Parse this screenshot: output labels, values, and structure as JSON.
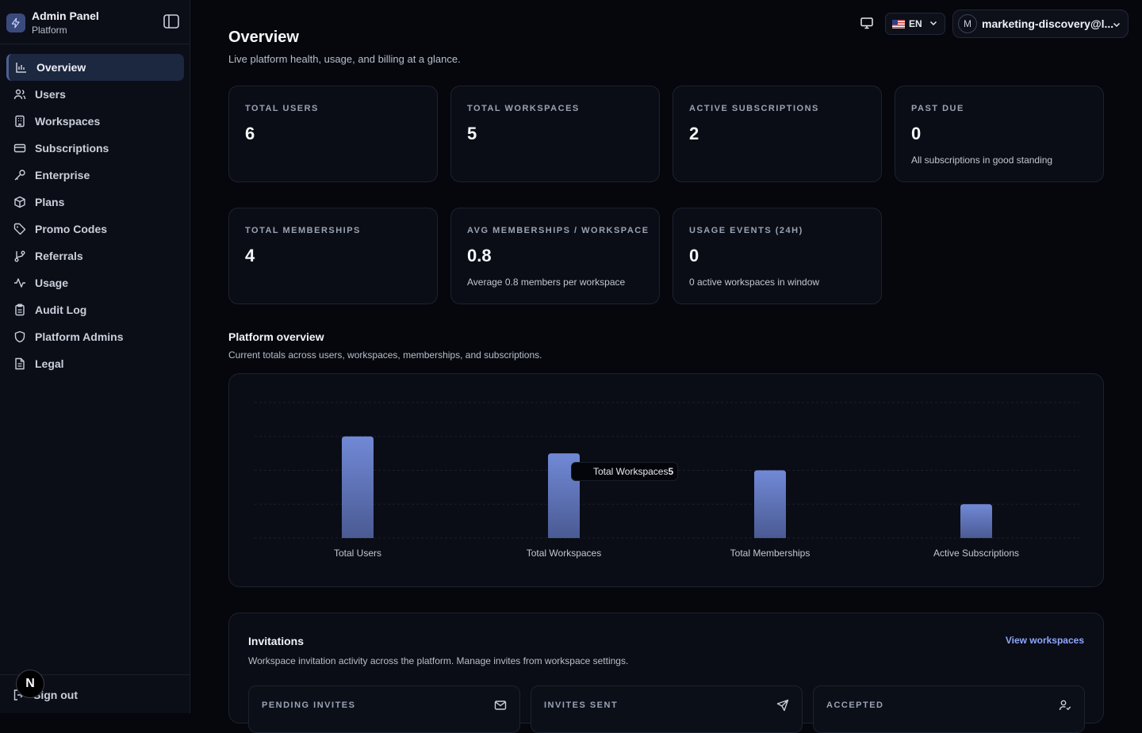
{
  "sidebar": {
    "brand_title": "Admin Panel",
    "brand_subtitle": "Platform",
    "items": [
      {
        "label": "Overview",
        "icon": "bar-chart-icon",
        "active": true
      },
      {
        "label": "Users",
        "icon": "users-icon"
      },
      {
        "label": "Workspaces",
        "icon": "building-icon"
      },
      {
        "label": "Subscriptions",
        "icon": "credit-card-icon"
      },
      {
        "label": "Enterprise",
        "icon": "key-icon"
      },
      {
        "label": "Plans",
        "icon": "package-icon"
      },
      {
        "label": "Promo Codes",
        "icon": "tag-icon"
      },
      {
        "label": "Referrals",
        "icon": "git-branch-icon"
      },
      {
        "label": "Usage",
        "icon": "activity-icon"
      },
      {
        "label": "Audit Log",
        "icon": "clipboard-icon"
      },
      {
        "label": "Platform Admins",
        "icon": "shield-icon"
      },
      {
        "label": "Legal",
        "icon": "file-text-icon"
      }
    ],
    "sign_out": "Sign out",
    "badge": "N"
  },
  "topbar": {
    "language": "EN",
    "user_initial": "M",
    "user_email": "marketing-discovery@l..."
  },
  "page": {
    "title": "Overview",
    "subtitle": "Live platform health, usage, and billing at a glance."
  },
  "stats": [
    {
      "label": "TOTAL USERS",
      "value": "6",
      "note": ""
    },
    {
      "label": "TOTAL WORKSPACES",
      "value": "5",
      "note": ""
    },
    {
      "label": "ACTIVE SUBSCRIPTIONS",
      "value": "2",
      "note": ""
    },
    {
      "label": "PAST DUE",
      "value": "0",
      "note": "All subscriptions in good standing"
    },
    {
      "label": "TOTAL MEMBERSHIPS",
      "value": "4",
      "note": ""
    },
    {
      "label": "AVG MEMBERSHIPS / WORKSPACE",
      "value": "0.8",
      "note": "Average 0.8 members per workspace"
    },
    {
      "label": "USAGE EVENTS (24H)",
      "value": "0",
      "note": "0 active workspaces in window"
    }
  ],
  "platform_overview": {
    "title": "Platform overview",
    "subtitle": "Current totals across users, workspaces, memberships, and subscriptions.",
    "tooltip_label": "Total Workspaces",
    "tooltip_value": "5"
  },
  "chart_data": {
    "type": "bar",
    "categories": [
      "Total Users",
      "Total Workspaces",
      "Total Memberships",
      "Active Subscriptions"
    ],
    "values": [
      6,
      5,
      4,
      2
    ],
    "ylim": [
      0,
      8
    ],
    "grid": true,
    "bar_color": "#6f86cf"
  },
  "invitations": {
    "title": "Invitations",
    "subtitle": "Workspace invitation activity across the platform. Manage invites from workspace settings.",
    "link": "View workspaces",
    "boxes": [
      {
        "label": "PENDING INVITES",
        "icon": "mail-icon"
      },
      {
        "label": "INVITES SENT",
        "icon": "send-icon"
      },
      {
        "label": "ACCEPTED",
        "icon": "user-check-icon"
      }
    ]
  }
}
